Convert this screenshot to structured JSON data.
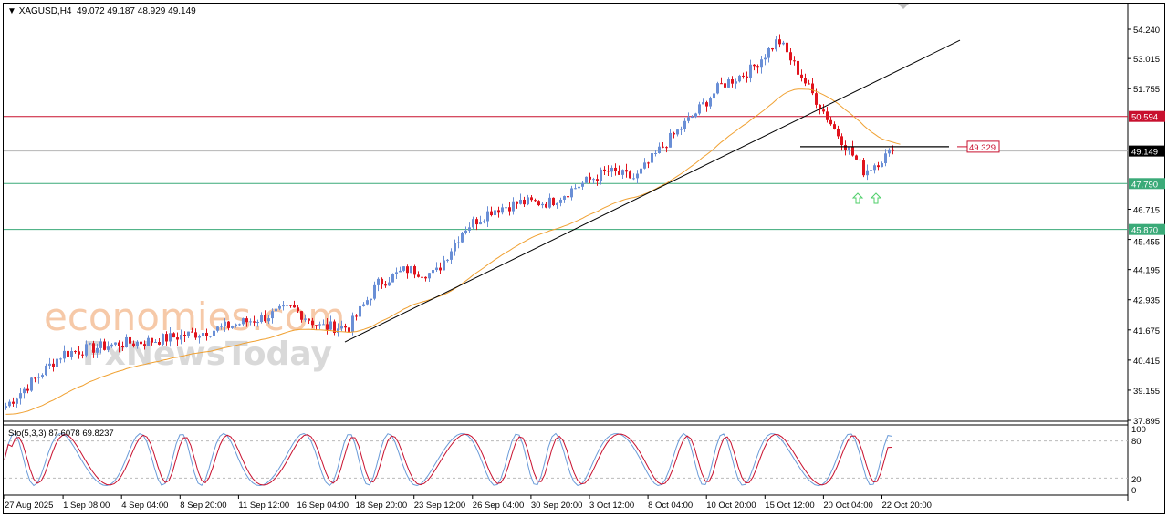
{
  "header": {
    "symbol": "XAGUSD,H4",
    "ohlc": "49.072 49.187 48.929 49.149"
  },
  "stochastic": {
    "label": "Sto(5,3,3) 87.6078 69.8237",
    "main": 87.6078,
    "signal": 69.8237,
    "levels": [
      "100",
      "80",
      "20",
      "0"
    ]
  },
  "watermarks": [
    "economies.com",
    "FxNewsToday"
  ],
  "colors": {
    "bull": "#6a8fd6",
    "bear": "#e0141e",
    "ma": "#f0a030",
    "resistance": "#c8102e",
    "support": "#3aaa78",
    "bid": "#000000",
    "stoch_main": "#6a9bd8",
    "stoch_signal": "#c8102e"
  },
  "chart_data": {
    "type": "candlestick",
    "symbol": "XAGUSD",
    "timeframe": "H4",
    "ylim": [
      37.895,
      54.24
    ],
    "y_ticks": [
      "54.240",
      "53.015",
      "51.755",
      "46.715",
      "45.455",
      "44.195",
      "42.935",
      "41.675",
      "40.415",
      "39.155",
      "37.895"
    ],
    "x_ticks": [
      "27 Aug 2025",
      "1 Sep 08:00",
      "4 Sep 04:00",
      "8 Sep 20:00",
      "11 Sep 12:00",
      "16 Sep 04:00",
      "18 Sep 20:00",
      "23 Sep 12:00",
      "26 Sep 04:00",
      "30 Sep 20:00",
      "3 Oct 12:00",
      "8 Oct 04:00",
      "10 Oct 20:00",
      "15 Oct 12:00",
      "20 Oct 04:00",
      "22 Oct 20:00"
    ],
    "close_trajectory": [
      38.5,
      39.6,
      40.7,
      40.9,
      41.1,
      41.2,
      41.4,
      41.6,
      41.9,
      42.2,
      42.6,
      41.8,
      41.8,
      43.6,
      44.2,
      44.0,
      45.9,
      46.7,
      47.0,
      47.0,
      47.7,
      48.3,
      48.0,
      49.4,
      50.6,
      51.9,
      52.5,
      53.8,
      51.9,
      50.0,
      48.3,
      49.15
    ],
    "levels": [
      {
        "label": "50.594",
        "value": 50.594,
        "kind": "resistance"
      },
      {
        "label": "49.149",
        "value": 49.149,
        "kind": "bid"
      },
      {
        "label": "47.790",
        "value": 47.79,
        "kind": "support"
      },
      {
        "label": "45.870",
        "value": 45.87,
        "kind": "support"
      }
    ],
    "annotation_level": {
      "label": "49.329",
      "value": 49.329
    },
    "trendline": {
      "from": 41.17,
      "to": 53.78
    },
    "moving_average": "orange",
    "arrows": [
      "up",
      "up"
    ]
  }
}
